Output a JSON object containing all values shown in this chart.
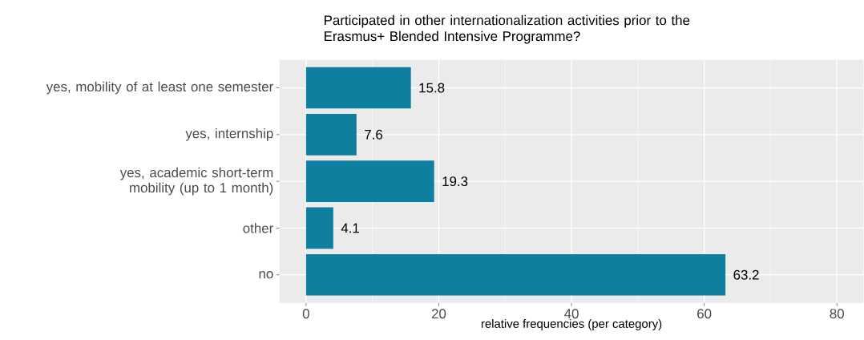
{
  "chart_data": {
    "type": "bar",
    "orientation": "horizontal",
    "title": "Participated in other internationalization activities prior to the Erasmus+ Blended Intensive Programme?",
    "xlabel": "relative frequencies (per category)",
    "categories": [
      "yes, mobility of at least one semester",
      "yes, internship",
      "yes, academic short-term mobility (up to 1 month)",
      "other",
      "no"
    ],
    "values": [
      15.8,
      7.6,
      19.3,
      4.1,
      63.2
    ],
    "color": "#0f7fa0",
    "xlim": [
      -4,
      84
    ],
    "xticks": [
      0,
      20,
      40,
      60,
      80
    ],
    "grid": true,
    "data_labels": true
  }
}
